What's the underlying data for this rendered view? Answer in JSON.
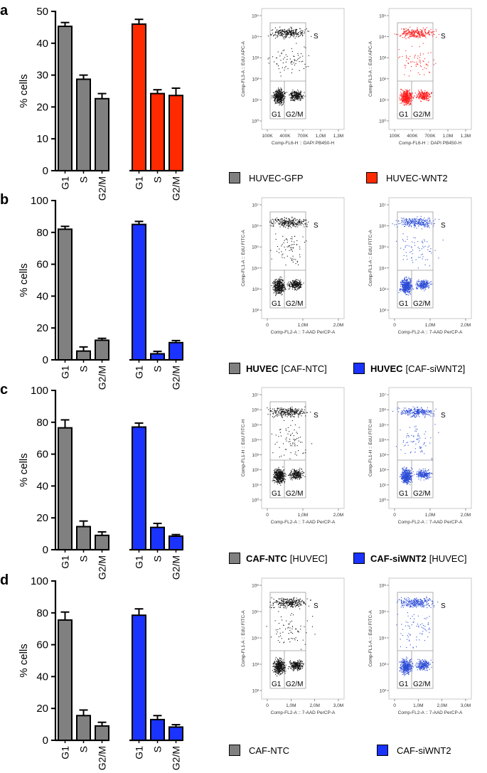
{
  "colors": {
    "gray": "#808080",
    "red": "#ff2a00",
    "blue": "#1a33ff",
    "scatter_black": "#111111",
    "scatter_red": "#ff1a1a",
    "scatter_blue": "#2b4bd6",
    "gate": "#999999"
  },
  "panels": [
    {
      "letter": "a",
      "chart_data": {
        "type": "bar",
        "ylabel": "% cells",
        "ylim": [
          0,
          50
        ],
        "yticks": [
          0,
          10,
          20,
          30,
          40,
          50
        ],
        "categories": [
          "G1",
          "S",
          "G2/M"
        ],
        "series": [
          {
            "name": "HUVEC-GFP",
            "color": "gray",
            "values": [
              45.3,
              28.7,
              22.6
            ],
            "errors": [
              1.2,
              1.3,
              1.6
            ]
          },
          {
            "name": "HUVEC-WNT2",
            "color": "red",
            "values": [
              46.0,
              24.2,
              23.6
            ],
            "errors": [
              1.5,
              1.2,
              2.3
            ]
          }
        ]
      },
      "flow": {
        "ylabel": "Comp-FL3-A :: EdU APC-A",
        "xlabel": "Comp-FL6-H :: DAPI PB450-H",
        "yticks": [
          "10⁰",
          "10¹",
          "10²",
          "10³",
          "10⁴",
          "10⁵"
        ],
        "xticks": [
          "100K",
          "400K",
          "700K",
          "1,0M",
          "1,3M"
        ],
        "gate_s": "S",
        "gate_g1": "G1",
        "gate_g2m": "G2/M",
        "dot_colors": [
          "scatter_black",
          "scatter_red"
        ]
      },
      "legend": [
        {
          "color": "gray",
          "bold": "",
          "text": "HUVEC-GFP"
        },
        {
          "color": "red",
          "bold": "",
          "text": "HUVEC-WNT2"
        }
      ]
    },
    {
      "letter": "b",
      "chart_data": {
        "type": "bar",
        "ylabel": "% cells",
        "ylim": [
          0,
          100
        ],
        "yticks": [
          0,
          20,
          40,
          60,
          80,
          100
        ],
        "categories": [
          "G1",
          "S",
          "G2/M"
        ],
        "series": [
          {
            "name": "HUVEC [CAF-NTC]",
            "color": "gray",
            "values": [
              82,
              5.5,
              12.3
            ],
            "errors": [
              1.8,
              2.6,
              1.2
            ]
          },
          {
            "name": "HUVEC [CAF-siWNT2]",
            "color": "blue",
            "values": [
              85,
              3.8,
              10.8
            ],
            "errors": [
              1.9,
              1.5,
              1.3
            ]
          }
        ]
      },
      "flow": {
        "ylabel": "Comp-FL1-A :: EdU FITC-A",
        "xlabel": "Comp-FL2-A :: 7-AAD PerCP-A",
        "yticks": [
          "10²",
          "10³",
          "10⁴",
          "10⁵",
          "10⁶",
          "10⁷"
        ],
        "xticks": [
          "0",
          "1,0M",
          "2,0M"
        ],
        "gate_s": "S",
        "gate_g1": "G1",
        "gate_g2m": "G2/M",
        "dot_colors": [
          "scatter_black",
          "scatter_blue"
        ]
      },
      "legend": [
        {
          "color": "gray",
          "bold": "HUVEC",
          "text": "[CAF-NTC]"
        },
        {
          "color": "blue",
          "bold": "HUVEC",
          "text": "[CAF-siWNT2]"
        }
      ]
    },
    {
      "letter": "c",
      "chart_data": {
        "type": "bar",
        "ylabel": "% cells",
        "ylim": [
          0,
          100
        ],
        "yticks": [
          0,
          20,
          40,
          60,
          80,
          100
        ],
        "categories": [
          "G1",
          "S",
          "G2/M"
        ],
        "series": [
          {
            "name": "CAF-NTC [HUVEC]",
            "color": "gray",
            "values": [
              76.5,
              14.5,
              9.0
            ],
            "errors": [
              5.0,
              3.5,
              2.2
            ]
          },
          {
            "name": "CAF-siWNT2 [HUVEC]",
            "color": "blue",
            "values": [
              77,
              14,
              8.5
            ],
            "errors": [
              2.5,
              2.5,
              1.0
            ]
          }
        ]
      },
      "flow": {
        "ylabel": "Comp-FL1-H :: EdU FITC-H",
        "xlabel": "Comp-FL2-A :: 7-AAD PerCP-A",
        "yticks": [
          "10⁰",
          "10¹",
          "10²",
          "10³",
          "10⁴",
          "10⁵",
          "10⁶",
          "10⁷"
        ],
        "xticks": [
          "0",
          "1,0M",
          "2,0M"
        ],
        "gate_s": "S",
        "gate_g1": "G1",
        "gate_g2m": "G2/M",
        "dot_colors": [
          "scatter_black",
          "scatter_blue"
        ]
      },
      "legend": [
        {
          "color": "gray",
          "bold": "CAF-NTC",
          "text": "[HUVEC]"
        },
        {
          "color": "blue",
          "bold": "CAF-siWNT2",
          "text": "[HUVEC]"
        }
      ]
    },
    {
      "letter": "d",
      "chart_data": {
        "type": "bar",
        "ylabel": "% cells",
        "ylim": [
          0,
          100
        ],
        "yticks": [
          0,
          20,
          40,
          60,
          80,
          100
        ],
        "categories": [
          "G1",
          "S",
          "G2/M"
        ],
        "series": [
          {
            "name": "CAF-NTC",
            "color": "gray",
            "values": [
              75.5,
              15.5,
              9.0
            ],
            "errors": [
              5.0,
              3.5,
              2.3
            ]
          },
          {
            "name": "CAF-siWNT2",
            "color": "blue",
            "values": [
              78.5,
              13.0,
              8.3
            ],
            "errors": [
              4.0,
              2.5,
              1.5
            ]
          }
        ]
      },
      "flow": {
        "ylabel": "Comp-FL1-A :: EdU FITC-A",
        "xlabel": "Comp-FL2-A :: 7-AAD PerCP-A",
        "yticks": [
          "10²",
          "10³",
          "10⁴",
          "10⁵",
          "10⁶"
        ],
        "xticks": [
          "0",
          "1,0M",
          "2,0M",
          "3,0M"
        ],
        "gate_s": "S",
        "gate_g1": "G1",
        "gate_g2m": "G2/M",
        "dot_colors": [
          "scatter_black",
          "scatter_blue"
        ]
      },
      "legend": [
        {
          "color": "gray",
          "bold": "",
          "text": "CAF-NTC"
        },
        {
          "color": "blue",
          "bold": "",
          "text": "CAF-siWNT2"
        }
      ]
    }
  ]
}
